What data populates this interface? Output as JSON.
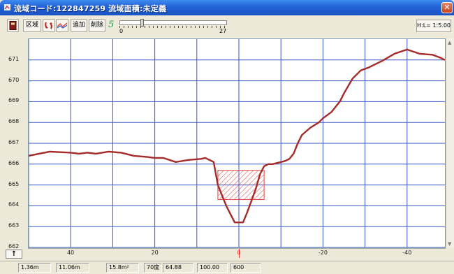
{
  "window": {
    "title": "流域コード:122847259  流域面積:未定義",
    "close_glyph": "✕"
  },
  "toolbar": {
    "region_label": "区域",
    "add_label": "追加",
    "delete_label": "削除",
    "count_value": "5",
    "slider": {
      "min_label": "0",
      "max_label": "27",
      "value_fraction": 0.2
    },
    "scale_label": "H:L= 1:5.00"
  },
  "y_axis_controls": {
    "up_arrow": "↑"
  },
  "status": {
    "f1": "1.36m",
    "f2": "11.06m",
    "f3": "15.8m²",
    "f4": "70度",
    "f5": "64.88",
    "f6": "100.00",
    "f7": "600"
  },
  "colors": {
    "profile_line": "#a52a2a",
    "hatch": "#e34040",
    "grid": "#3a57c4",
    "center_marker": "#e03030",
    "titlebar": "#2261d6"
  },
  "chart_data": {
    "type": "line",
    "title": "",
    "xlabel": "",
    "ylabel": "",
    "xlim": [
      50,
      -49
    ],
    "ylim": [
      662,
      672
    ],
    "x_ticks": [
      40,
      20,
      0,
      -20,
      -40
    ],
    "x_tick_labels": [
      "40",
      "20",
      "0",
      "-20",
      "-40"
    ],
    "y_ticks": [
      671,
      670,
      669,
      668,
      667,
      666,
      665,
      664,
      663,
      662
    ],
    "y_tick_labels": [
      "671",
      "670",
      "669",
      "668",
      "667",
      "666",
      "665",
      "664",
      "663",
      "662"
    ],
    "vertical_grid_x": [
      50,
      40,
      30,
      20,
      10,
      0,
      -10,
      -20,
      -30,
      -40
    ],
    "grid": true,
    "series": [
      {
        "x": [
          50,
          45,
          40,
          38,
          36,
          34,
          31,
          28,
          25,
          22,
          20,
          18,
          15,
          12,
          9,
          8,
          7,
          6,
          5,
          3,
          1,
          -1,
          -2,
          -4,
          -5,
          -6,
          -7,
          -8,
          -10,
          -11,
          -12,
          -13,
          -14,
          -15,
          -17,
          -19,
          -20,
          -22,
          -24,
          -25,
          -27,
          -29,
          -31,
          -34,
          -37,
          -40,
          -43,
          -46,
          -48,
          -49
        ],
        "y": [
          666.4,
          666.6,
          666.55,
          666.5,
          666.55,
          666.5,
          666.6,
          666.55,
          666.4,
          666.35,
          666.3,
          666.3,
          666.1,
          666.2,
          666.25,
          666.3,
          666.2,
          666.1,
          665.0,
          664.0,
          663.2,
          663.2,
          663.7,
          664.8,
          665.5,
          665.9,
          666.0,
          666.0,
          666.1,
          666.15,
          666.25,
          666.5,
          667.0,
          667.4,
          667.75,
          668.0,
          668.2,
          668.5,
          669.0,
          669.4,
          670.1,
          670.5,
          670.65,
          670.95,
          671.3,
          671.5,
          671.3,
          671.25,
          671.1,
          671.0
        ]
      }
    ],
    "highlight": {
      "x_range": [
        5,
        -6
      ],
      "y_range": [
        664.3,
        665.7
      ],
      "fill": "diagonal-hatch"
    },
    "center_marker_x": 0
  }
}
